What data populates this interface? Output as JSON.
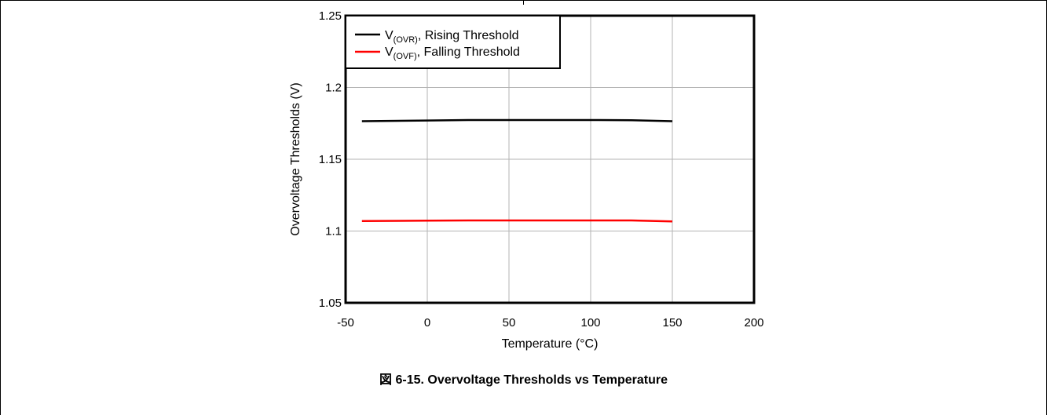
{
  "caption": "図 6-15. Overvoltage Thresholds vs Temperature",
  "chart_data": {
    "type": "line",
    "xlabel": "Temperature (°C)",
    "ylabel": "Overvoltage Thresholds (V)",
    "xlim": [
      -50,
      200
    ],
    "ylim": [
      1.05,
      1.25
    ],
    "xticks": [
      "-50",
      "0",
      "50",
      "100",
      "150",
      "200"
    ],
    "yticks": [
      "1.05",
      "1.1",
      "1.15",
      "1.2",
      "1.25"
    ],
    "grid": true,
    "legend_position": "top-left",
    "series": [
      {
        "name": "V(OVR), Rising Threshold",
        "legend_main": "V",
        "legend_sub": "(OVR)",
        "legend_rest": ", Rising Threshold",
        "color": "#000000",
        "x": [
          -40,
          0,
          25,
          50,
          100,
          125,
          150
        ],
        "y": [
          1.1765,
          1.177,
          1.1773,
          1.1773,
          1.1773,
          1.1772,
          1.1765
        ]
      },
      {
        "name": "V(OVF), Falling Threshold",
        "legend_main": "V",
        "legend_sub": "(OVF)",
        "legend_rest": ", Falling Threshold",
        "color": "#ff0000",
        "x": [
          -40,
          0,
          25,
          50,
          100,
          125,
          150
        ],
        "y": [
          1.107,
          1.1072,
          1.1074,
          1.1074,
          1.1074,
          1.1074,
          1.1067
        ]
      }
    ]
  }
}
